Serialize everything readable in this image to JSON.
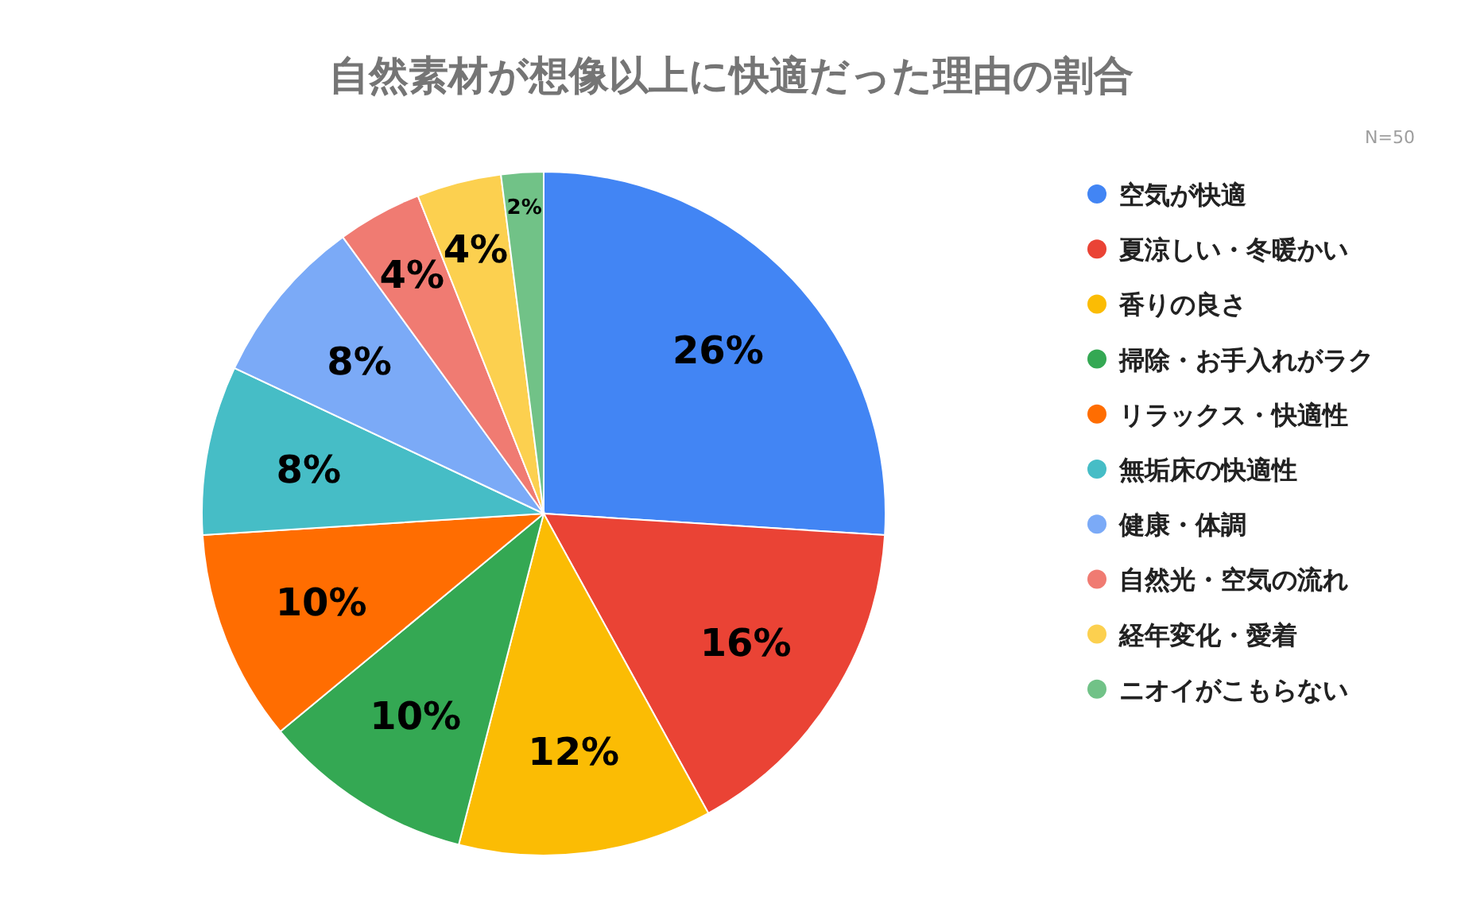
{
  "chart_data": {
    "type": "pie",
    "title": "自然素材が想像以上に快適だった理由の割合",
    "categories": [
      "空気が快適",
      "夏涼しい・冬暖かい",
      "香りの良さ",
      "掃除・お手入れがラク",
      "リラックス・快適性",
      "無垢床の快適性",
      "健康・体調",
      "自然光・空気の流れ",
      "経年変化・愛着",
      "ニオイがこもらない"
    ],
    "values": [
      26,
      16,
      12,
      10,
      10,
      8,
      8,
      4,
      4,
      2
    ],
    "value_labels": [
      "26%",
      "16%",
      "12%",
      "10%",
      "10%",
      "8%",
      "8%",
      "4%",
      "4%",
      "2%"
    ],
    "colors": [
      "#4285f4",
      "#ea4335",
      "#fbbc04",
      "#34a853",
      "#ff6d01",
      "#46bdc6",
      "#7baaf7",
      "#f07b72",
      "#fcd04f",
      "#71c287"
    ],
    "legend": "right",
    "annotations": [
      "N=50"
    ]
  }
}
